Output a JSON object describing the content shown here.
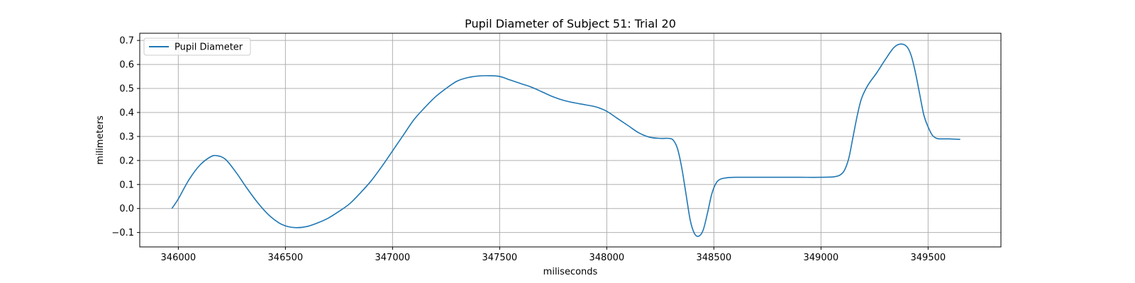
{
  "chart_data": {
    "type": "line",
    "title": "Pupil Diameter of Subject 51: Trial 20",
    "xlabel": "miliseconds",
    "ylabel": "milimeters",
    "xlim": [
      345820,
      349840
    ],
    "ylim": [
      -0.16,
      0.73
    ],
    "xticks": [
      346000,
      346500,
      347000,
      347500,
      348000,
      348500,
      349000,
      349500
    ],
    "yticks": [
      -0.1,
      0.0,
      0.1,
      0.2,
      0.3,
      0.4,
      0.5,
      0.6,
      0.7
    ],
    "ytick_labels": [
      "−0.1",
      "0.0",
      "0.1",
      "0.2",
      "0.3",
      "0.4",
      "0.5",
      "0.6",
      "0.7"
    ],
    "grid": true,
    "legend_position": "top-left",
    "colors": {
      "series": "#1f77b4",
      "grid": "#b0b0b0",
      "frame": "#000000"
    },
    "series": [
      {
        "name": "Pupil Diameter",
        "x": [
          345970,
          346000,
          346050,
          346100,
          346150,
          346180,
          346220,
          346270,
          346320,
          346370,
          346420,
          346470,
          346510,
          346550,
          346600,
          346650,
          346700,
          346750,
          346800,
          346850,
          346900,
          346950,
          347000,
          347050,
          347100,
          347150,
          347200,
          347250,
          347300,
          347350,
          347400,
          347450,
          347500,
          347550,
          347600,
          347650,
          347700,
          347750,
          347800,
          347850,
          347900,
          347950,
          348000,
          348050,
          348100,
          348150,
          348200,
          348250,
          348290,
          348310,
          348330,
          348350,
          348370,
          348390,
          348410,
          348430,
          348450,
          348470,
          348490,
          348510,
          348530,
          348560,
          348600,
          348700,
          348800,
          348900,
          349000,
          349060,
          349090,
          349110,
          349130,
          349150,
          349170,
          349190,
          349220,
          349260,
          349300,
          349340,
          349370,
          349400,
          349420,
          349440,
          349460,
          349480,
          349500,
          349520,
          349540,
          349560,
          349600,
          349650
        ],
        "y": [
          0.0,
          0.04,
          0.12,
          0.18,
          0.215,
          0.22,
          0.205,
          0.15,
          0.085,
          0.025,
          -0.025,
          -0.06,
          -0.075,
          -0.08,
          -0.075,
          -0.06,
          -0.04,
          -0.012,
          0.02,
          0.065,
          0.115,
          0.175,
          0.24,
          0.305,
          0.37,
          0.42,
          0.465,
          0.5,
          0.53,
          0.545,
          0.552,
          0.553,
          0.55,
          0.535,
          0.52,
          0.505,
          0.485,
          0.465,
          0.45,
          0.44,
          0.432,
          0.423,
          0.405,
          0.375,
          0.345,
          0.315,
          0.297,
          0.292,
          0.292,
          0.285,
          0.25,
          0.17,
          0.06,
          -0.05,
          -0.105,
          -0.115,
          -0.09,
          -0.02,
          0.06,
          0.105,
          0.122,
          0.128,
          0.13,
          0.13,
          0.13,
          0.13,
          0.13,
          0.132,
          0.14,
          0.16,
          0.21,
          0.3,
          0.39,
          0.46,
          0.515,
          0.565,
          0.62,
          0.67,
          0.685,
          0.675,
          0.64,
          0.57,
          0.48,
          0.39,
          0.34,
          0.305,
          0.292,
          0.29,
          0.29,
          0.288
        ]
      }
    ]
  }
}
